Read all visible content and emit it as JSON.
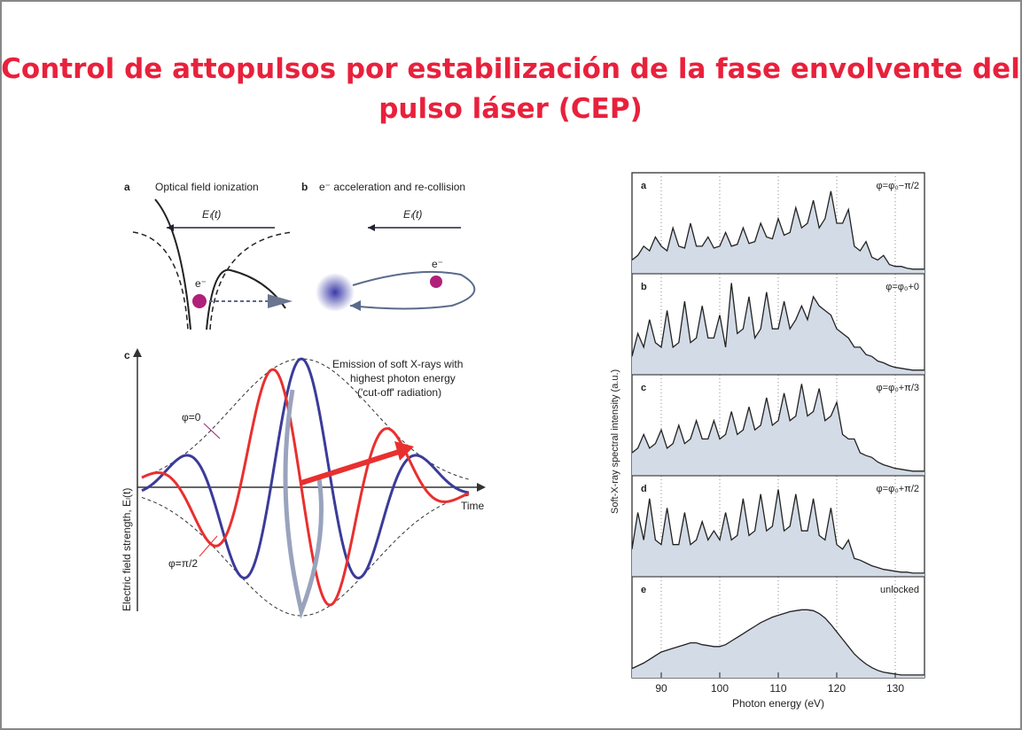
{
  "title": "Control de attopulsos por estabilización de  la fase envolvente del pulso láser (CEP)",
  "diagram": {
    "panel_a": "a",
    "panel_a_title": "Optical field ionization",
    "field_a": "Eₗ(t)",
    "electron_a": "e⁻",
    "panel_b": "b",
    "panel_b_title": "e⁻ acceleration and re-collision",
    "field_b": "Eₗ(t)",
    "electron_b": "e⁻",
    "panel_c": "c",
    "emission_line1": "Emission of soft X-rays with",
    "emission_line2": "highest photon energy",
    "emission_line3": "('cut-off' radiation)",
    "phase_0": "φ=0",
    "phase_pi2": "φ=π/2",
    "time_label": "Time",
    "y_label": "Electric field strength, Eₗ(t)"
  },
  "chart_data": {
    "type": "area",
    "xlabel": "Photon energy (eV)",
    "ylabel": "Soft-X-ray spectral intensity (a.u.)",
    "x": [
      85,
      86,
      87,
      88,
      89,
      90,
      91,
      92,
      93,
      94,
      95,
      96,
      97,
      98,
      99,
      100,
      101,
      102,
      103,
      104,
      105,
      106,
      107,
      108,
      109,
      110,
      111,
      112,
      113,
      114,
      115,
      116,
      117,
      118,
      119,
      120,
      121,
      122,
      123,
      124,
      125,
      126,
      127,
      128,
      129,
      130,
      131,
      132,
      133,
      134,
      135
    ],
    "xlim": [
      85,
      135
    ],
    "xticks": [
      90,
      100,
      110,
      120,
      130
    ],
    "ylim": [
      0,
      1.1
    ],
    "grid": true,
    "series": [
      {
        "panel": "a",
        "name": "φ=φ₀−π/2",
        "color": "#d3dbe6",
        "values": [
          0.15,
          0.2,
          0.3,
          0.25,
          0.4,
          0.3,
          0.25,
          0.5,
          0.3,
          0.28,
          0.55,
          0.3,
          0.3,
          0.4,
          0.28,
          0.3,
          0.45,
          0.3,
          0.32,
          0.5,
          0.33,
          0.35,
          0.55,
          0.4,
          0.38,
          0.6,
          0.42,
          0.45,
          0.72,
          0.5,
          0.55,
          0.8,
          0.5,
          0.6,
          0.9,
          0.55,
          0.55,
          0.7,
          0.3,
          0.25,
          0.35,
          0.18,
          0.15,
          0.2,
          0.1,
          0.08,
          0.08,
          0.06,
          0.05,
          0.05,
          0.05
        ]
      },
      {
        "panel": "b",
        "name": "φ=φ₀+0",
        "color": "#d3dbe6",
        "values": [
          0.2,
          0.45,
          0.3,
          0.6,
          0.35,
          0.3,
          0.7,
          0.3,
          0.35,
          0.8,
          0.35,
          0.4,
          0.75,
          0.4,
          0.4,
          0.65,
          0.3,
          1.0,
          0.45,
          0.5,
          0.85,
          0.4,
          0.5,
          0.9,
          0.5,
          0.5,
          0.8,
          0.5,
          0.6,
          0.75,
          0.6,
          0.85,
          0.75,
          0.7,
          0.65,
          0.5,
          0.45,
          0.4,
          0.3,
          0.3,
          0.22,
          0.2,
          0.15,
          0.13,
          0.1,
          0.08,
          0.07,
          0.06,
          0.05,
          0.05,
          0.05
        ]
      },
      {
        "panel": "c",
        "name": "φ=φ₀+π/3",
        "color": "#d3dbe6",
        "values": [
          0.25,
          0.3,
          0.45,
          0.3,
          0.35,
          0.5,
          0.3,
          0.35,
          0.55,
          0.35,
          0.4,
          0.6,
          0.4,
          0.4,
          0.6,
          0.4,
          0.45,
          0.7,
          0.45,
          0.5,
          0.75,
          0.5,
          0.55,
          0.85,
          0.55,
          0.6,
          0.9,
          0.6,
          0.65,
          1.0,
          0.65,
          0.7,
          0.95,
          0.6,
          0.65,
          0.8,
          0.45,
          0.4,
          0.4,
          0.25,
          0.22,
          0.2,
          0.15,
          0.12,
          0.1,
          0.08,
          0.07,
          0.06,
          0.05,
          0.05,
          0.05
        ]
      },
      {
        "panel": "d",
        "name": "φ=φ₀+π/2",
        "color": "#d3dbe6",
        "values": [
          0.3,
          0.7,
          0.4,
          0.85,
          0.4,
          0.35,
          0.75,
          0.35,
          0.35,
          0.7,
          0.35,
          0.4,
          0.6,
          0.4,
          0.5,
          0.4,
          0.7,
          0.4,
          0.45,
          0.85,
          0.45,
          0.5,
          0.9,
          0.5,
          0.55,
          0.95,
          0.5,
          0.55,
          0.9,
          0.5,
          0.5,
          0.85,
          0.45,
          0.4,
          0.75,
          0.35,
          0.3,
          0.4,
          0.2,
          0.18,
          0.15,
          0.12,
          0.1,
          0.08,
          0.07,
          0.06,
          0.05,
          0.05,
          0.04,
          0.04,
          0.04
        ]
      },
      {
        "panel": "e",
        "name": "unlocked",
        "color": "#d3dbe6",
        "values": [
          0.1,
          0.13,
          0.16,
          0.2,
          0.24,
          0.28,
          0.3,
          0.32,
          0.34,
          0.36,
          0.38,
          0.38,
          0.36,
          0.35,
          0.34,
          0.34,
          0.36,
          0.4,
          0.44,
          0.48,
          0.52,
          0.56,
          0.6,
          0.63,
          0.66,
          0.68,
          0.7,
          0.72,
          0.73,
          0.74,
          0.74,
          0.73,
          0.7,
          0.65,
          0.58,
          0.5,
          0.42,
          0.34,
          0.26,
          0.2,
          0.15,
          0.11,
          0.08,
          0.06,
          0.05,
          0.04,
          0.03,
          0.03,
          0.03,
          0.03,
          0.03
        ]
      }
    ]
  }
}
